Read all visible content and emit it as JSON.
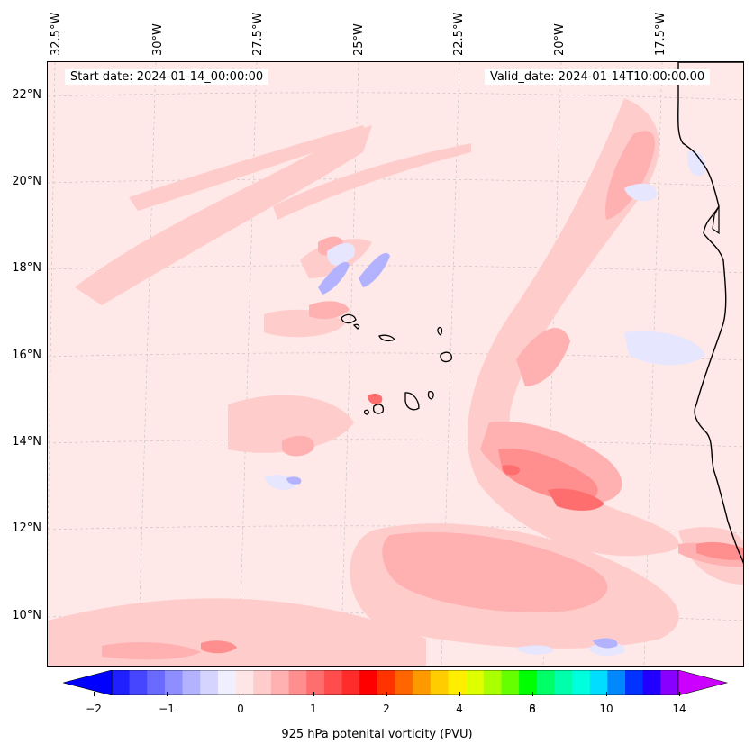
{
  "map": {
    "start_date_text": "Start date: 2024-01-14_00:00:00",
    "valid_date_text": "Valid_date: 2024-01-14T10:00:00.00",
    "longitude_labels": [
      "32.5°W",
      "30°W",
      "27.5°W",
      "25°W",
      "22.5°W",
      "20°W",
      "17.5°W"
    ],
    "latitude_labels": [
      "22°N",
      "20°N",
      "18°N",
      "16°N",
      "14°N",
      "12°N",
      "10°N"
    ],
    "background_color": "#ffe8e8",
    "coastline_color": "#000000"
  },
  "colorbar": {
    "title": "925 hPa potenital vorticity (PVU)",
    "tick_labels": [
      "−2",
      "−1",
      "0",
      "1",
      "2",
      "4",
      "6",
      "8",
      "10",
      "14"
    ],
    "colors": [
      "#0000ff",
      "#2020ff",
      "#4646ff",
      "#6a6aff",
      "#8e8eff",
      "#b2b2ff",
      "#d4d4ff",
      "#efefff",
      "#ffe6e6",
      "#ffcccc",
      "#ffb0b0",
      "#ff8f8f",
      "#ff6e6e",
      "#ff4d4d",
      "#ff2c2c",
      "#ff0000",
      "#ff3300",
      "#ff6600",
      "#ff9900",
      "#ffcc00",
      "#ffee00",
      "#ddff00",
      "#aaff00",
      "#66ff00",
      "#00ff00",
      "#00ff66",
      "#00ffaa",
      "#00ffdd",
      "#00ddff",
      "#0088ff",
      "#0033ff",
      "#2200ff",
      "#8800ff",
      "#cc00ff"
    ]
  }
}
